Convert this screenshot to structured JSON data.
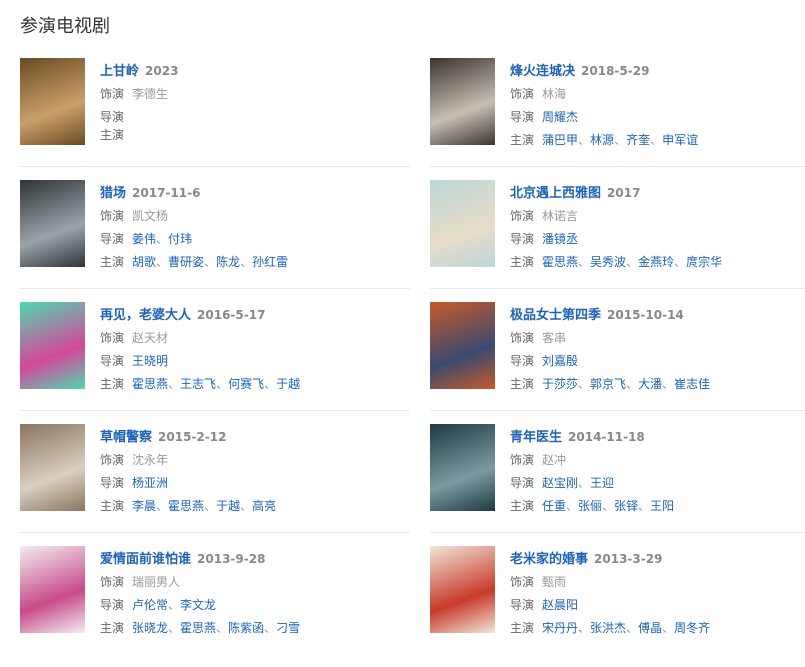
{
  "section_title": "参演电视剧",
  "labels": {
    "role": "饰演",
    "director": "导演",
    "cast": "主演"
  },
  "columns": [
    [
      {
        "title": "上甘岭",
        "date": "2023",
        "role": "李德生",
        "directors": [],
        "cast": [],
        "colors": [
          "#6b4a22",
          "#c9a06a"
        ]
      },
      {
        "title": "猎场",
        "date": "2017-11-6",
        "role": "凯文杨",
        "directors": [
          "姜伟",
          "付玮"
        ],
        "cast": [
          "胡歌",
          "曹研姿",
          "陈龙",
          "孙红雷"
        ],
        "colors": [
          "#2e3438",
          "#9aa3a8"
        ]
      },
      {
        "title": "再见，老婆大人",
        "date": "2016-5-17",
        "role": "赵天材",
        "directors": [
          "王晓明"
        ],
        "cast": [
          "霍思燕",
          "王志飞",
          "何赛飞",
          "于越"
        ],
        "colors": [
          "#4fd8b0",
          "#d4489a"
        ]
      },
      {
        "title": "草帽警察",
        "date": "2015-2-12",
        "role": "沈永年",
        "directors": [
          "杨亚洲"
        ],
        "cast": [
          "李晨",
          "霍思燕",
          "于越",
          "高亮"
        ],
        "colors": [
          "#8a7560",
          "#d9cfc0"
        ]
      },
      {
        "title": "爱情面前谁怕谁",
        "date": "2013-9-28",
        "role": "瑞丽男人",
        "directors": [
          "卢伦常",
          "李文龙"
        ],
        "cast": [
          "张晓龙",
          "霍思燕",
          "陈紫函",
          "刁雪"
        ],
        "colors": [
          "#f3eef0",
          "#c84a8a"
        ]
      }
    ],
    [
      {
        "title": "烽火连城决",
        "date": "2018-5-29",
        "role": "林海",
        "directors": [
          "周耀杰"
        ],
        "cast": [
          "蒲巴甲",
          "林源",
          "齐奎",
          "申军谊"
        ],
        "colors": [
          "#3a3430",
          "#c8bfb4"
        ]
      },
      {
        "title": "北京遇上西雅图",
        "date": "2017",
        "role": "林诺言",
        "directors": [
          "潘镜丞"
        ],
        "cast": [
          "霍思燕",
          "吴秀波",
          "金燕玲",
          "庹宗华"
        ],
        "colors": [
          "#bcd8d8",
          "#e8dcc8"
        ]
      },
      {
        "title": "极品女士第四季",
        "date": "2015-10-14",
        "role": "客串",
        "directors": [
          "刘嘉殷"
        ],
        "cast": [
          "于莎莎",
          "郭京飞",
          "大潘",
          "崔志佳"
        ],
        "colors": [
          "#c85a28",
          "#3a4a70"
        ]
      },
      {
        "title": "青年医生",
        "date": "2014-11-18",
        "role": "赵冲",
        "directors": [
          "赵宝刚",
          "王迎"
        ],
        "cast": [
          "任重",
          "张俪",
          "张铎",
          "王阳"
        ],
        "colors": [
          "#1e3a44",
          "#7a9aa0"
        ]
      },
      {
        "title": "老米家的婚事",
        "date": "2013-3-29",
        "role": "甄雨",
        "directors": [
          "赵晨阳"
        ],
        "cast": [
          "宋丹丹",
          "张洪杰",
          "傅晶",
          "周冬齐"
        ],
        "colors": [
          "#f0e6d8",
          "#c83a2a"
        ]
      }
    ]
  ]
}
